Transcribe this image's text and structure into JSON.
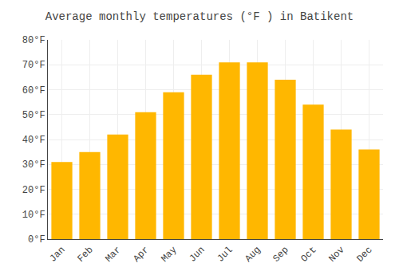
{
  "chart_data": {
    "type": "bar",
    "title": "Average monthly temperatures (°F ) in Batikent",
    "categories": [
      "Jan",
      "Feb",
      "Mar",
      "Apr",
      "May",
      "Jun",
      "Jul",
      "Aug",
      "Sep",
      "Oct",
      "Nov",
      "Dec"
    ],
    "values": [
      31,
      35,
      42,
      51,
      59,
      66,
      71,
      71,
      64,
      54,
      44,
      36
    ],
    "color": "#FFB700",
    "ylim": [
      0,
      80
    ],
    "yticks": [
      {
        "value": 0,
        "label": "0°F"
      },
      {
        "value": 10,
        "label": "10°F"
      },
      {
        "value": 20,
        "label": "20°F"
      },
      {
        "value": 30,
        "label": "30°F"
      },
      {
        "value": 40,
        "label": "40°F"
      },
      {
        "value": 50,
        "label": "50°F"
      },
      {
        "value": 60,
        "label": "60°F"
      },
      {
        "value": 70,
        "label": "70°F"
      },
      {
        "value": 80,
        "label": "80°F"
      }
    ],
    "grid": true
  }
}
